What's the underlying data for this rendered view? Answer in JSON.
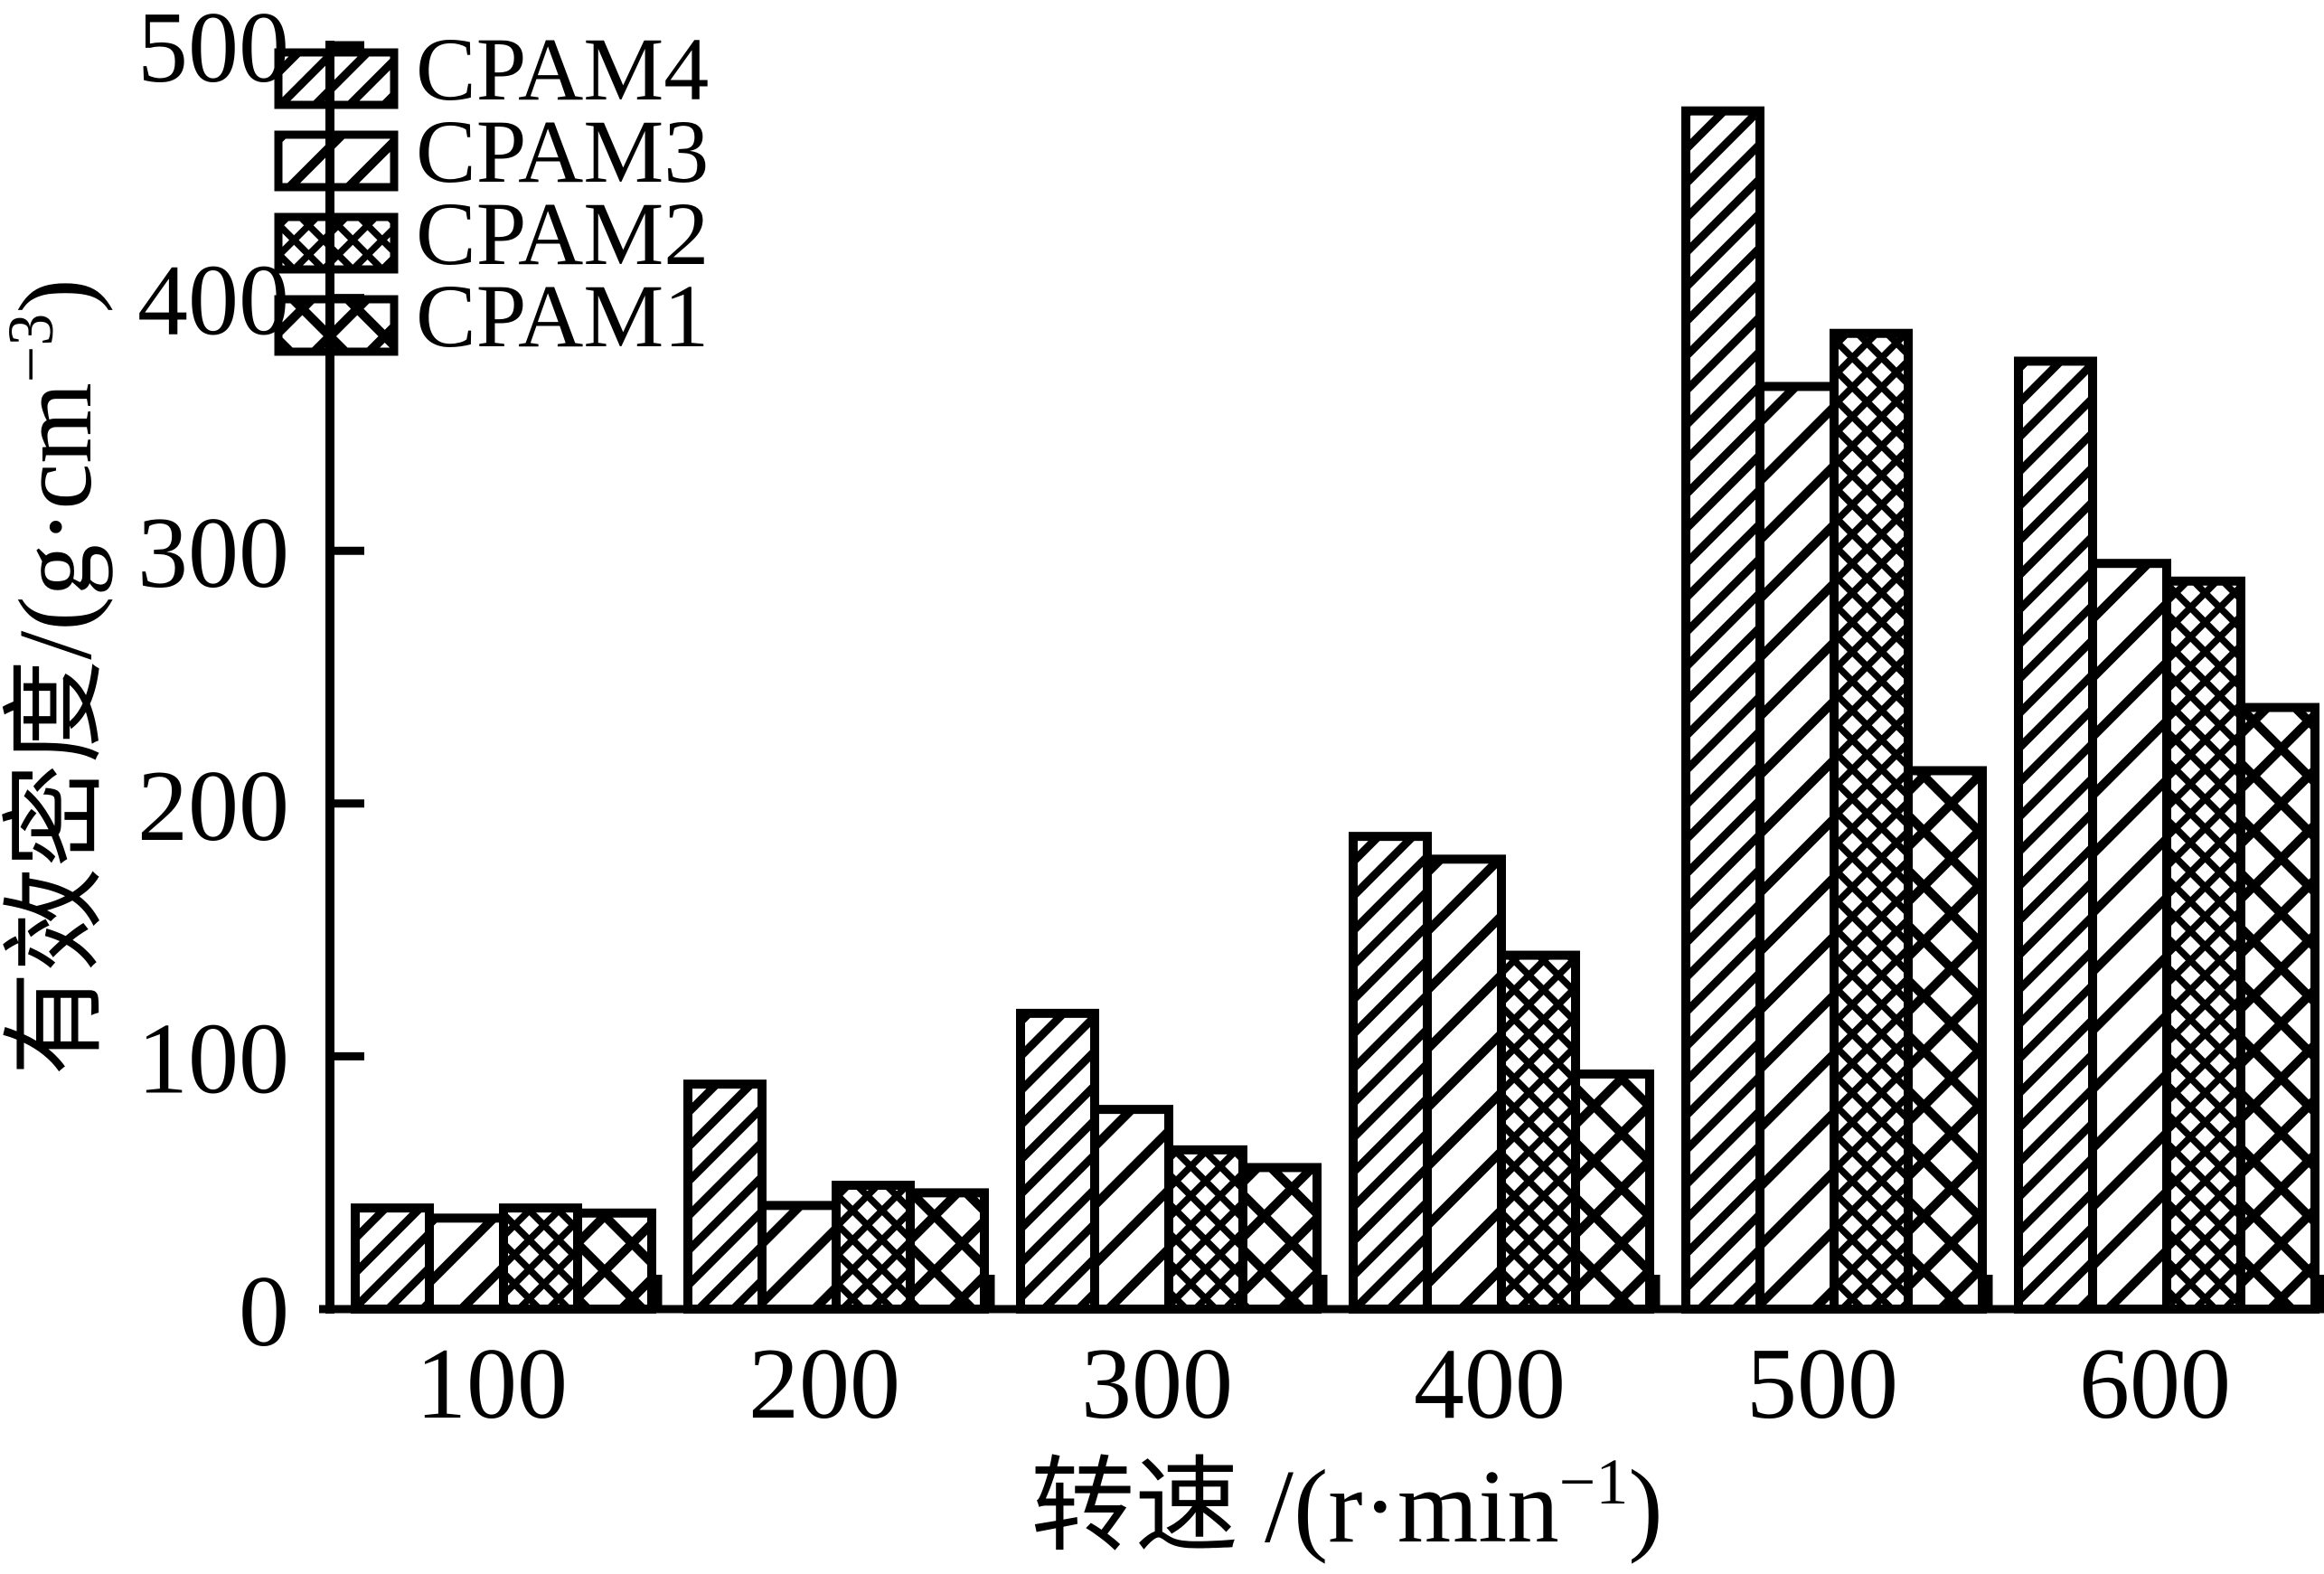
{
  "chart_data": {
    "type": "bar",
    "title": "",
    "categories": [
      "100",
      "200",
      "300",
      "400",
      "500",
      "600"
    ],
    "series": [
      {
        "name": "CPAM4",
        "pattern": "diagonal-dense",
        "values": [
          40,
          89,
          117,
          187,
          474,
          375
        ]
      },
      {
        "name": "CPAM3",
        "pattern": "diagonal-wide",
        "values": [
          36,
          41,
          79,
          178,
          365,
          295
        ]
      },
      {
        "name": "CPAM2",
        "pattern": "crosshatch-dense",
        "values": [
          40,
          49,
          63,
          140,
          386,
          288
        ]
      },
      {
        "name": "CPAM1",
        "pattern": "crosshatch-wide",
        "values": [
          38,
          46,
          56,
          93,
          213,
          238
        ]
      }
    ],
    "xlabel": {
      "base": "转速 /(r·min",
      "sup": "−1",
      "close": ")"
    },
    "ylabel": {
      "base": "有效密度/(g·cm",
      "sup": "−3",
      "close": ")"
    },
    "ylim": [
      0,
      500
    ],
    "yticks": [
      0,
      100,
      200,
      300,
      400,
      500
    ],
    "legend_position": "top-left",
    "legend_order": [
      "CPAM4",
      "CPAM3",
      "CPAM2",
      "CPAM1"
    ],
    "grid": false,
    "bar_style": "black-and-white hatched, thick black outlines"
  },
  "colors": {
    "foreground": "#000000",
    "background": "#ffffff"
  }
}
